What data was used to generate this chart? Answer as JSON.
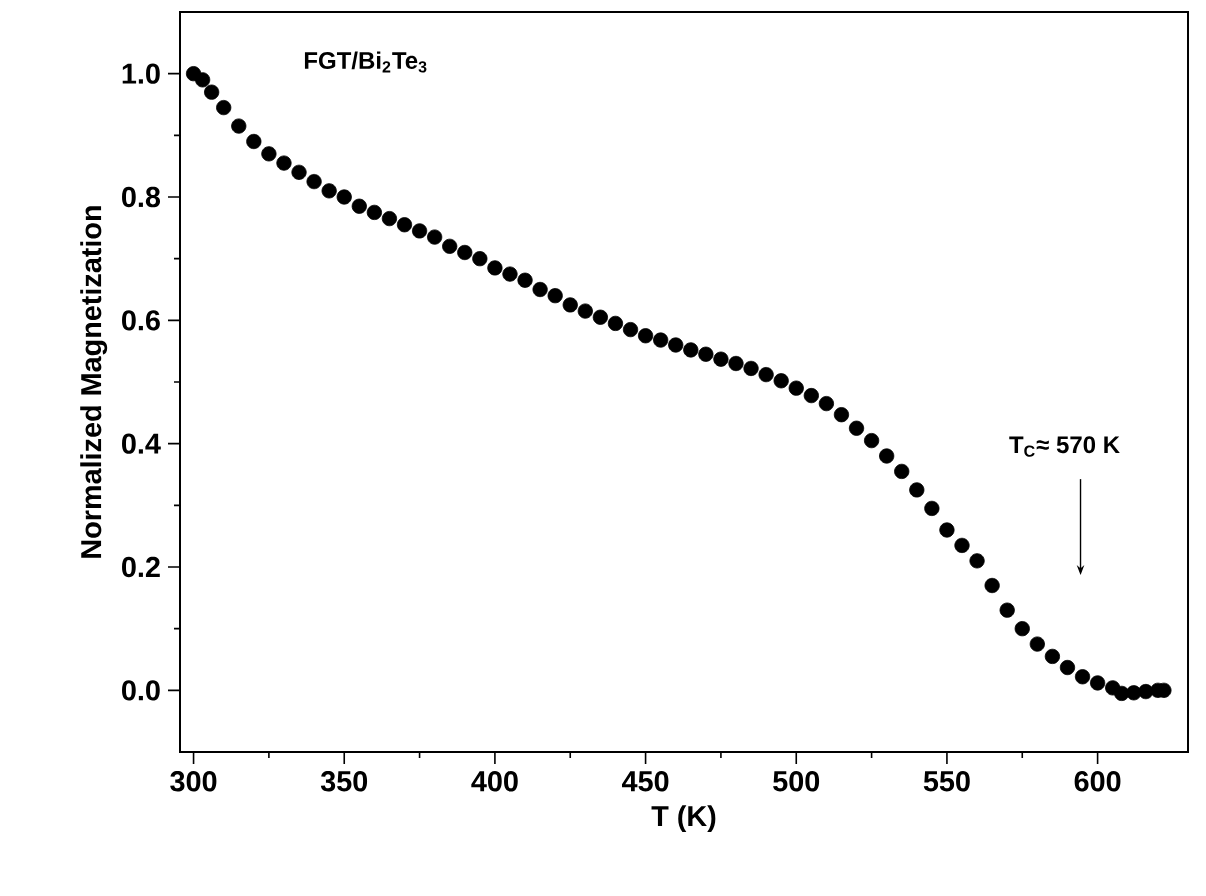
{
  "chart_data": {
    "type": "scatter",
    "xlabel": "T (K)",
    "ylabel": "Normalized Magnetization",
    "x": [
      300,
      303,
      306,
      310,
      315,
      320,
      325,
      330,
      335,
      340,
      345,
      350,
      355,
      360,
      365,
      370,
      375,
      380,
      385,
      390,
      395,
      400,
      405,
      410,
      415,
      420,
      425,
      430,
      435,
      440,
      445,
      450,
      455,
      460,
      465,
      470,
      475,
      480,
      485,
      490,
      495,
      500,
      505,
      510,
      515,
      520,
      525,
      530,
      535,
      540,
      545,
      550,
      555,
      560,
      565,
      570,
      575,
      580,
      585,
      590,
      595,
      600,
      605,
      608,
      612,
      616,
      620,
      622
    ],
    "values": [
      1.0,
      0.99,
      0.97,
      0.945,
      0.915,
      0.89,
      0.87,
      0.855,
      0.84,
      0.825,
      0.81,
      0.8,
      0.785,
      0.775,
      0.765,
      0.755,
      0.745,
      0.735,
      0.72,
      0.71,
      0.7,
      0.685,
      0.675,
      0.665,
      0.65,
      0.64,
      0.625,
      0.615,
      0.605,
      0.595,
      0.585,
      0.575,
      0.568,
      0.56,
      0.552,
      0.545,
      0.537,
      0.53,
      0.522,
      0.512,
      0.502,
      0.49,
      0.478,
      0.465,
      0.447,
      0.425,
      0.405,
      0.38,
      0.355,
      0.325,
      0.295,
      0.26,
      0.235,
      0.21,
      0.17,
      0.13,
      0.1,
      0.075,
      0.055,
      0.037,
      0.022,
      0.012,
      0.004,
      -0.005,
      -0.004,
      -0.002,
      0.0,
      0.0
    ],
    "color": "#000000",
    "marker": "circle",
    "xlim": [
      295.5,
      630
    ],
    "ylim": [
      -0.1,
      1.1
    ],
    "xticks": [
      300,
      350,
      400,
      450,
      500,
      550,
      600
    ],
    "yticks": [
      {
        "value": 0.0,
        "label": "0.0"
      },
      {
        "value": 0.2,
        "label": "0.2"
      },
      {
        "value": 0.4,
        "label": "0.4"
      },
      {
        "value": 0.6,
        "label": "0.6"
      },
      {
        "value": 0.8,
        "label": "0.8"
      },
      {
        "value": 1.0,
        "label": "1.0"
      }
    ],
    "grid": false,
    "annotations": [
      "FGT/Bi$_{2}$Te$_{3}$",
      "T$_{C}$≈ 570 K"
    ]
  }
}
